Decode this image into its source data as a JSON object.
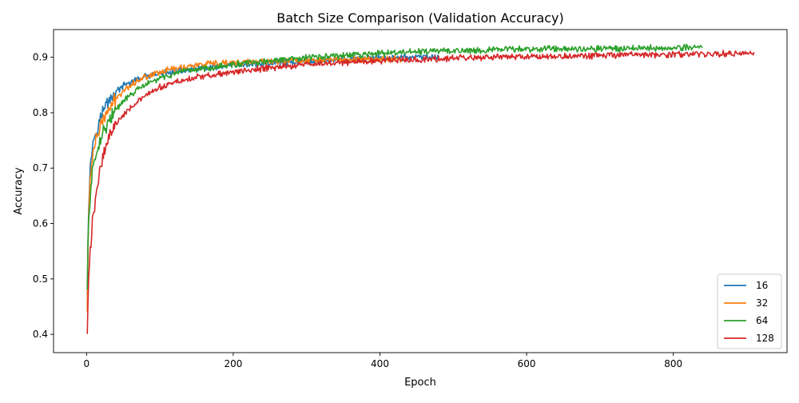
{
  "chart_data": {
    "type": "line",
    "title": "Batch Size Comparison (Validation Accuracy)",
    "xlabel": "Epoch",
    "ylabel": "Accuracy",
    "xlim": [
      -45,
      955
    ],
    "ylim": [
      0.367,
      0.95
    ],
    "xticks": [
      0,
      200,
      400,
      600,
      800
    ],
    "yticks": [
      0.4,
      0.5,
      0.6,
      0.7,
      0.8,
      0.9
    ],
    "grid": false,
    "legend_position": "lower-right",
    "series": [
      {
        "name": "16",
        "color": "#1f77b4",
        "max_epoch": 480,
        "x": [
          1,
          2,
          3,
          5,
          8,
          12,
          16,
          20,
          25,
          30,
          40,
          50,
          60,
          70,
          80,
          100,
          120,
          150,
          200,
          250,
          300,
          350,
          400,
          450,
          480
        ],
        "values": [
          0.48,
          0.58,
          0.64,
          0.7,
          0.74,
          0.765,
          0.78,
          0.795,
          0.81,
          0.822,
          0.838,
          0.848,
          0.855,
          0.86,
          0.865,
          0.87,
          0.874,
          0.879,
          0.885,
          0.889,
          0.893,
          0.896,
          0.899,
          0.9,
          0.9
        ]
      },
      {
        "name": "32",
        "color": "#ff7f0e",
        "max_epoch": 430,
        "x": [
          1,
          2,
          3,
          5,
          8,
          12,
          16,
          20,
          25,
          30,
          40,
          50,
          60,
          70,
          80,
          100,
          120,
          150,
          200,
          250,
          300,
          350,
          400,
          430
        ],
        "values": [
          0.44,
          0.55,
          0.62,
          0.68,
          0.72,
          0.748,
          0.765,
          0.778,
          0.792,
          0.805,
          0.825,
          0.84,
          0.85,
          0.858,
          0.865,
          0.874,
          0.88,
          0.886,
          0.89,
          0.893,
          0.895,
          0.896,
          0.897,
          0.897
        ]
      },
      {
        "name": "64",
        "color": "#2ca02c",
        "max_epoch": 840,
        "x": [
          1,
          2,
          3,
          5,
          8,
          12,
          16,
          20,
          25,
          30,
          40,
          50,
          60,
          70,
          80,
          100,
          120,
          150,
          200,
          250,
          300,
          350,
          400,
          450,
          500,
          600,
          700,
          800,
          840
        ],
        "values": [
          0.48,
          0.56,
          0.61,
          0.65,
          0.69,
          0.72,
          0.74,
          0.757,
          0.772,
          0.785,
          0.805,
          0.82,
          0.832,
          0.842,
          0.85,
          0.862,
          0.87,
          0.878,
          0.887,
          0.893,
          0.899,
          0.903,
          0.907,
          0.91,
          0.912,
          0.915,
          0.916,
          0.917,
          0.918
        ]
      },
      {
        "name": "128",
        "color": "#d62728",
        "max_epoch": 910,
        "x": [
          1,
          2,
          3,
          5,
          8,
          12,
          16,
          20,
          25,
          30,
          40,
          50,
          60,
          70,
          80,
          100,
          120,
          150,
          200,
          250,
          300,
          350,
          400,
          450,
          500,
          600,
          700,
          800,
          900,
          910
        ],
        "values": [
          0.4,
          0.46,
          0.5,
          0.55,
          0.6,
          0.64,
          0.68,
          0.71,
          0.735,
          0.755,
          0.78,
          0.797,
          0.81,
          0.82,
          0.83,
          0.845,
          0.855,
          0.864,
          0.873,
          0.881,
          0.887,
          0.891,
          0.894,
          0.896,
          0.898,
          0.901,
          0.903,
          0.905,
          0.907,
          0.907
        ]
      }
    ]
  }
}
